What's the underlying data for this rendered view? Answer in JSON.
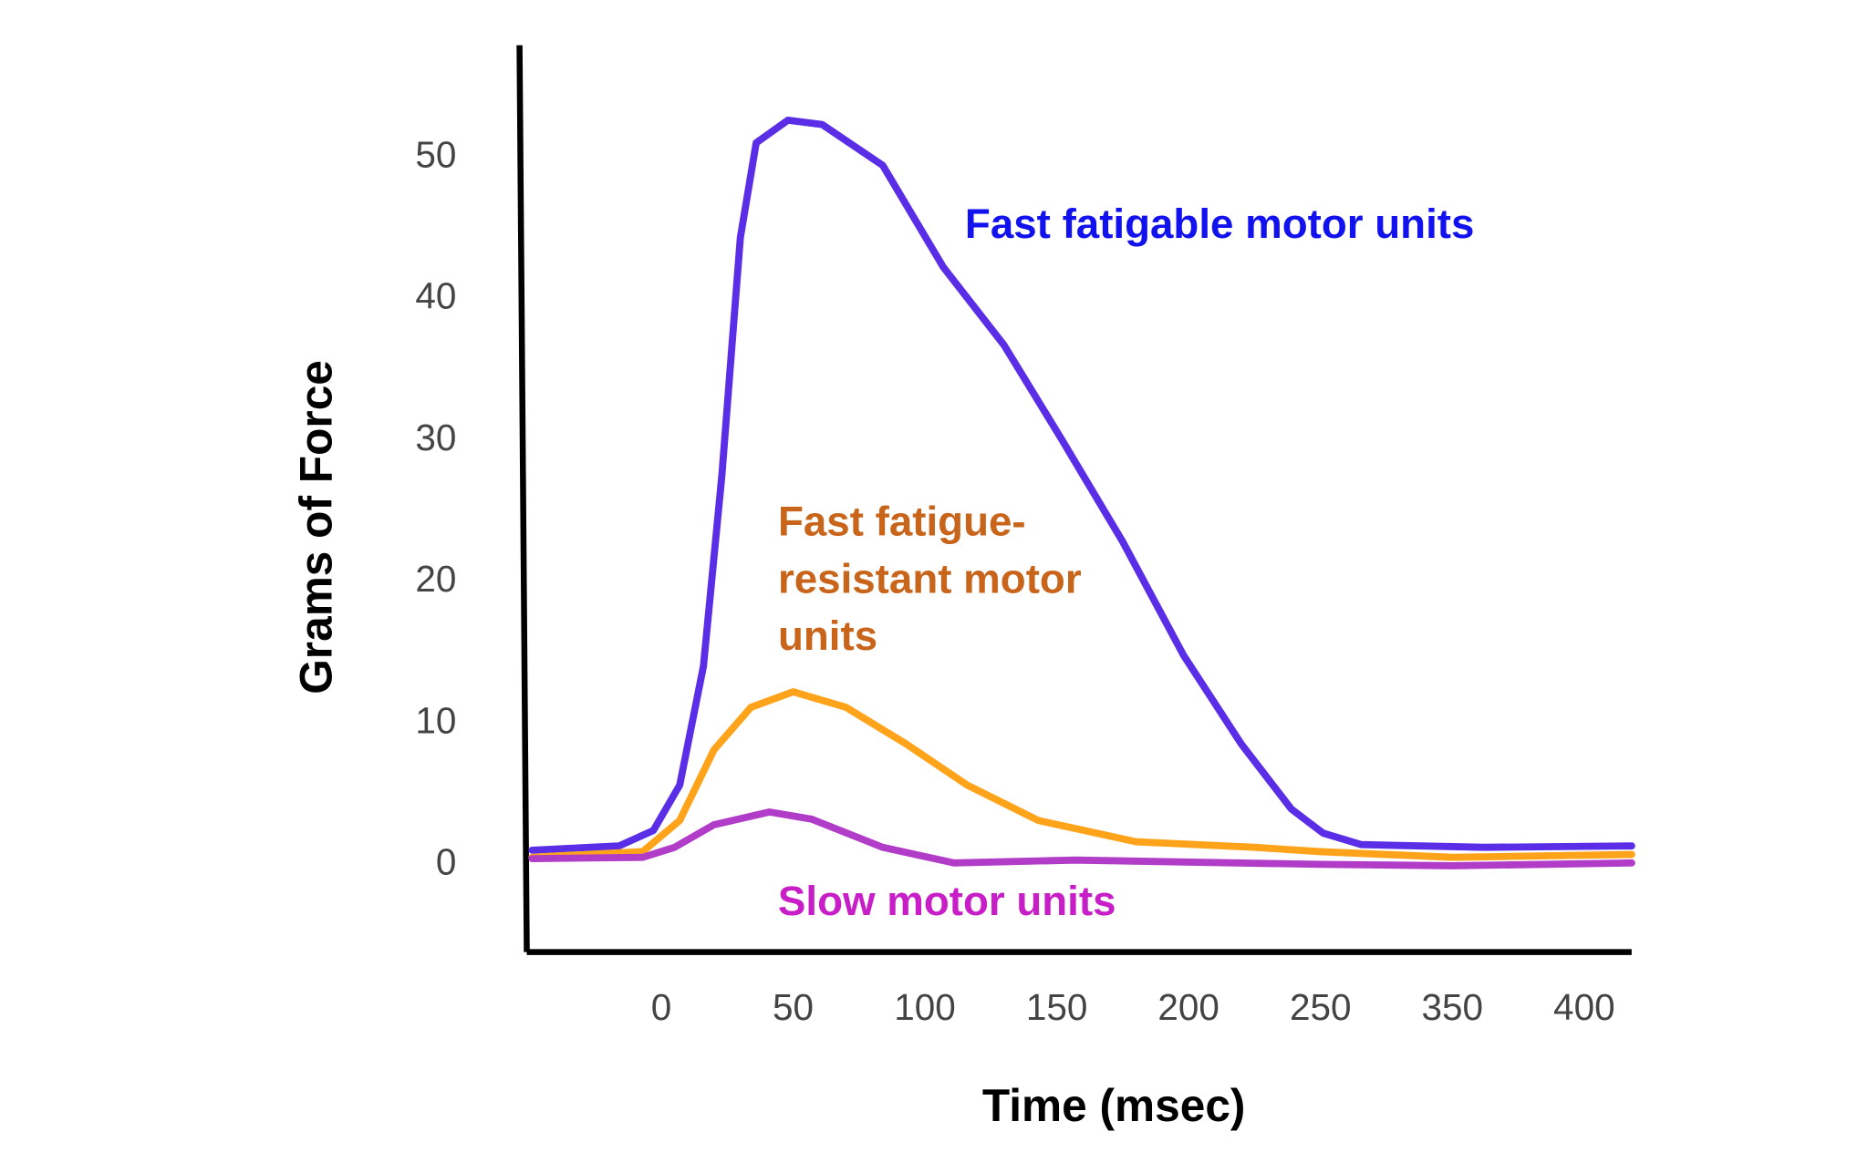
{
  "chart_data": {
    "type": "line",
    "x_label": "Time (msec)",
    "y_label": "Grams of Force",
    "xlim": [
      -51,
      418
    ],
    "xticks": [
      0,
      50,
      100,
      150,
      200,
      250,
      350,
      400
    ],
    "ylim": [
      -6.4,
      57.7
    ],
    "yticks": [
      0,
      10,
      20,
      30,
      40,
      50
    ],
    "grid": false,
    "series": [
      {
        "name": "Fast fatigable motor units",
        "color": "#5a2ee6",
        "label_color": "#1212ee",
        "x": [
          -49,
          -16,
          -3,
          7,
          16,
          23,
          30,
          36,
          48,
          61,
          84,
          107,
          130,
          152,
          175,
          198,
          220,
          239,
          252,
          281,
          362,
          418
        ],
        "values": [
          0.8,
          1.1,
          2.2,
          5.4,
          13.8,
          27.3,
          44.1,
          50.8,
          52.4,
          52.1,
          49.2,
          42.0,
          36.5,
          29.8,
          22.6,
          14.6,
          8.3,
          3.7,
          2.0,
          1.2,
          1.0,
          1.1
        ]
      },
      {
        "name": "Fast fatigue-resistant motor units",
        "color": "#ffa31a",
        "label_color": "#c8651b",
        "x": [
          -49,
          -7,
          7,
          20,
          34,
          50,
          70,
          93,
          116,
          143,
          180,
          225,
          250,
          350,
          418
        ],
        "values": [
          0.3,
          0.7,
          2.9,
          7.9,
          10.9,
          12.0,
          10.9,
          8.3,
          5.4,
          2.9,
          1.4,
          1.0,
          0.7,
          0.3,
          0.5
        ]
      },
      {
        "name": "Slow motor units",
        "color": "#b03cc8",
        "label_color": "#c81ec8",
        "x": [
          -49,
          -7,
          5,
          20,
          41,
          57,
          84,
          111,
          157,
          250,
          350,
          418
        ],
        "values": [
          0.2,
          0.3,
          1.0,
          2.6,
          3.5,
          3.0,
          1.0,
          -0.1,
          0.1,
          -0.2,
          -0.3,
          -0.1
        ]
      }
    ]
  }
}
